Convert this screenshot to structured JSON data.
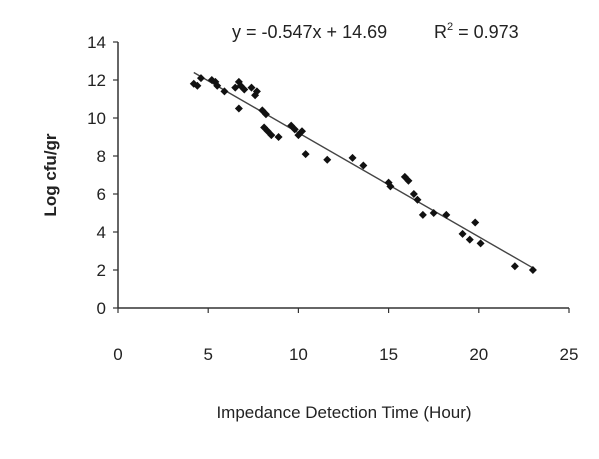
{
  "chart_data": {
    "type": "scatter",
    "title": "",
    "xlabel": "Impedance Detection Time (Hour)",
    "ylabel": "Log cfu/gr",
    "xlim": [
      0,
      25
    ],
    "ylim": [
      0,
      14
    ],
    "xticks": [
      0,
      5,
      10,
      15,
      20,
      25
    ],
    "yticks": [
      0,
      2,
      4,
      6,
      8,
      10,
      12,
      14
    ],
    "grid": false,
    "equation_label": "y = -0.547x + 14.69",
    "r2_label": "R",
    "r2_sup": "2",
    "r2_value": " = 0.973",
    "trendline": {
      "slope": -0.547,
      "intercept": 14.69,
      "x_range": [
        4.2,
        23.0
      ]
    },
    "points": [
      {
        "x": 4.2,
        "y": 11.8
      },
      {
        "x": 4.4,
        "y": 11.7
      },
      {
        "x": 4.6,
        "y": 12.1
      },
      {
        "x": 5.2,
        "y": 12.0
      },
      {
        "x": 5.4,
        "y": 11.9
      },
      {
        "x": 5.5,
        "y": 11.7
      },
      {
        "x": 5.9,
        "y": 11.4
      },
      {
        "x": 6.5,
        "y": 11.6
      },
      {
        "x": 6.7,
        "y": 11.9
      },
      {
        "x": 6.8,
        "y": 11.7
      },
      {
        "x": 7.0,
        "y": 11.5
      },
      {
        "x": 7.4,
        "y": 11.6
      },
      {
        "x": 7.6,
        "y": 11.2
      },
      {
        "x": 7.7,
        "y": 11.4
      },
      {
        "x": 6.7,
        "y": 10.5
      },
      {
        "x": 8.0,
        "y": 10.4
      },
      {
        "x": 8.2,
        "y": 10.2
      },
      {
        "x": 8.1,
        "y": 9.5
      },
      {
        "x": 8.3,
        "y": 9.3
      },
      {
        "x": 8.5,
        "y": 9.1
      },
      {
        "x": 8.9,
        "y": 9.0
      },
      {
        "x": 9.6,
        "y": 9.6
      },
      {
        "x": 9.8,
        "y": 9.4
      },
      {
        "x": 10.0,
        "y": 9.1
      },
      {
        "x": 10.2,
        "y": 9.3
      },
      {
        "x": 10.4,
        "y": 8.1
      },
      {
        "x": 11.6,
        "y": 7.8
      },
      {
        "x": 13.0,
        "y": 7.9
      },
      {
        "x": 13.6,
        "y": 7.5
      },
      {
        "x": 15.0,
        "y": 6.6
      },
      {
        "x": 15.1,
        "y": 6.4
      },
      {
        "x": 15.9,
        "y": 6.9
      },
      {
        "x": 16.1,
        "y": 6.7
      },
      {
        "x": 16.4,
        "y": 6.0
      },
      {
        "x": 16.6,
        "y": 5.7
      },
      {
        "x": 16.9,
        "y": 4.9
      },
      {
        "x": 17.5,
        "y": 5.0
      },
      {
        "x": 18.2,
        "y": 4.9
      },
      {
        "x": 19.1,
        "y": 3.9
      },
      {
        "x": 19.5,
        "y": 3.6
      },
      {
        "x": 19.8,
        "y": 4.5
      },
      {
        "x": 20.1,
        "y": 3.4
      },
      {
        "x": 22.0,
        "y": 2.2
      },
      {
        "x": 23.0,
        "y": 2.0
      }
    ]
  }
}
